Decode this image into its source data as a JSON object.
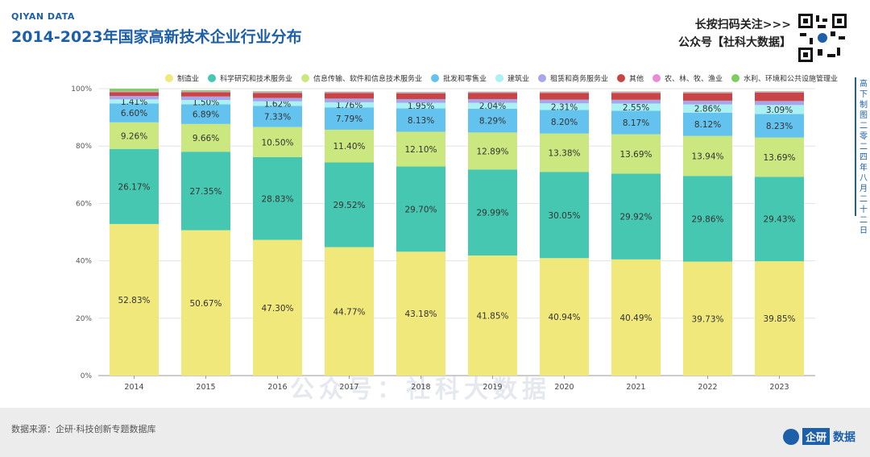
{
  "header": {
    "brand": "QIYAN DATA",
    "title": "2014-2023年国家高新技术企业行业分布",
    "follow_line1": "长按扫码关注>>>",
    "follow_line2": "公众号【社科大数据】"
  },
  "sidebar": {
    "text": "高下制图  二零二四年八月二十二日"
  },
  "watermark": {
    "text": "公众号：社科大数据"
  },
  "footer": {
    "source": "数据来源：企研·科技创新专题数据库",
    "logo_name": "企研",
    "logo_sub": "数据"
  },
  "colors": {
    "manufacturing": "#f0e87a",
    "research": "#45c7b1",
    "it": "#cbe77f",
    "wholesale": "#63c3ee",
    "construction": "#a9f1f2",
    "leasing": "#a8a6ea",
    "other": "#c94444",
    "agri": "#ea8ad8",
    "water": "#7ccf5f"
  },
  "chart_data": {
    "type": "bar",
    "stacked": true,
    "normalized": true,
    "categories": [
      "2014",
      "2015",
      "2016",
      "2017",
      "2018",
      "2019",
      "2020",
      "2021",
      "2022",
      "2023"
    ],
    "ylim": [
      0,
      100
    ],
    "yticks": [
      "0%",
      "20%",
      "40%",
      "60%",
      "80%",
      "100%"
    ],
    "legend_position": "top",
    "series": [
      {
        "name": "制造业",
        "color_key": "manufacturing",
        "values": [
          52.83,
          50.67,
          47.3,
          44.77,
          43.18,
          41.85,
          40.94,
          40.49,
          39.73,
          39.85
        ],
        "labels": [
          "52.83%",
          "50.67%",
          "47.30%",
          "44.77%",
          "43.18%",
          "41.85%",
          "40.94%",
          "40.49%",
          "39.73%",
          "39.85%"
        ]
      },
      {
        "name": "科学研究和技术服务业",
        "color_key": "research",
        "values": [
          26.17,
          27.35,
          28.83,
          29.52,
          29.7,
          29.99,
          30.05,
          29.92,
          29.86,
          29.43
        ],
        "labels": [
          "26.17%",
          "27.35%",
          "28.83%",
          "29.52%",
          "29.70%",
          "29.99%",
          "30.05%",
          "29.92%",
          "29.86%",
          "29.43%"
        ]
      },
      {
        "name": "信息传输、软件和信息技术服务业",
        "color_key": "it",
        "values": [
          9.26,
          9.66,
          10.5,
          11.4,
          12.1,
          12.89,
          13.38,
          13.69,
          13.94,
          13.69
        ],
        "labels": [
          "9.26%",
          "9.66%",
          "10.50%",
          "11.40%",
          "12.10%",
          "12.89%",
          "13.38%",
          "13.69%",
          "13.94%",
          "13.69%"
        ]
      },
      {
        "name": "批发和零售业",
        "color_key": "wholesale",
        "values": [
          6.6,
          6.89,
          7.33,
          7.79,
          8.13,
          8.29,
          8.2,
          8.17,
          8.12,
          8.23
        ],
        "labels": [
          "6.60%",
          "6.89%",
          "7.33%",
          "7.79%",
          "8.13%",
          "8.29%",
          "8.20%",
          "8.17%",
          "8.12%",
          "8.23%"
        ]
      },
      {
        "name": "建筑业",
        "color_key": "construction",
        "values": [
          1.41,
          1.5,
          1.62,
          1.76,
          1.95,
          2.04,
          2.31,
          2.55,
          2.86,
          3.09
        ],
        "labels": [
          "1.41%",
          "1.50%",
          "1.62%",
          "1.76%",
          "1.95%",
          "2.04%",
          "2.31%",
          "2.55%",
          "2.86%",
          "3.09%"
        ]
      },
      {
        "name": "租赁和商务服务业",
        "color_key": "leasing",
        "values": [
          1.2,
          1.2,
          1.2,
          1.3,
          1.3,
          1.3,
          1.3,
          1.3,
          1.3,
          1.4
        ],
        "labels": []
      },
      {
        "name": "其他",
        "color_key": "other",
        "values": [
          1.3,
          1.5,
          1.7,
          1.9,
          2.0,
          2.1,
          2.3,
          2.4,
          2.6,
          2.9
        ],
        "labels": []
      },
      {
        "name": "农、林、牧、渔业",
        "color_key": "agri",
        "values": [
          0.3,
          0.3,
          0.3,
          0.3,
          0.3,
          0.3,
          0.3,
          0.3,
          0.3,
          0.3
        ],
        "labels": []
      },
      {
        "name": "水利、环境和公共设施管理业",
        "color_key": "water",
        "values": [
          0.9,
          0.4,
          0.3,
          0.2,
          0.2,
          0.2,
          0.2,
          0.2,
          0.2,
          0.2
        ],
        "labels": []
      }
    ]
  }
}
